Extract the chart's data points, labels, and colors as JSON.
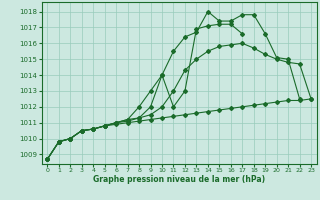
{
  "title": "Graphe pression niveau de la mer (hPa)",
  "bg_color": "#cce8e0",
  "grid_color": "#99ccbb",
  "line_color": "#1a6b2a",
  "xlim": [
    -0.5,
    23.5
  ],
  "ylim": [
    1008.4,
    1018.6
  ],
  "yticks": [
    1009,
    1010,
    1011,
    1012,
    1013,
    1014,
    1015,
    1016,
    1017,
    1018
  ],
  "xticks": [
    0,
    1,
    2,
    3,
    4,
    5,
    6,
    7,
    8,
    9,
    10,
    11,
    12,
    13,
    14,
    15,
    16,
    17,
    18,
    19,
    20,
    21,
    22,
    23
  ],
  "series": [
    {
      "x": [
        0,
        1,
        2,
        3,
        4,
        5,
        6,
        7,
        8,
        9,
        10,
        11,
        12,
        13,
        14,
        15,
        16,
        17,
        18,
        19,
        20,
        21,
        22,
        23
      ],
      "y": [
        1008.7,
        1009.8,
        1010.0,
        1010.5,
        1010.6,
        1010.8,
        1010.9,
        1011.0,
        1011.1,
        1011.2,
        1011.3,
        1011.4,
        1011.5,
        1011.6,
        1011.7,
        1011.8,
        1011.9,
        1012.0,
        1012.1,
        1012.2,
        1012.3,
        1012.4,
        1012.4,
        1012.5
      ]
    },
    {
      "x": [
        0,
        1,
        2,
        3,
        4,
        5,
        6,
        7,
        8,
        9,
        10,
        11,
        12,
        13,
        14,
        15,
        16,
        17,
        18,
        19,
        20,
        21,
        22,
        23
      ],
      "y": [
        1008.7,
        1009.8,
        1010.0,
        1010.5,
        1010.6,
        1010.8,
        1011.0,
        1011.1,
        1011.3,
        1011.5,
        1012.0,
        1013.0,
        1014.3,
        1015.0,
        1015.5,
        1015.8,
        1015.9,
        1016.0,
        1015.7,
        1015.3,
        1015.0,
        1014.8,
        1014.7,
        1012.5
      ]
    },
    {
      "x": [
        0,
        1,
        2,
        3,
        4,
        5,
        6,
        7,
        8,
        9,
        10,
        11,
        12,
        13,
        14,
        15,
        16,
        17,
        18,
        19,
        20,
        21,
        22
      ],
      "y": [
        1008.7,
        1009.8,
        1010.0,
        1010.5,
        1010.6,
        1010.8,
        1011.0,
        1011.2,
        1011.3,
        1012.0,
        1014.0,
        1015.5,
        1016.4,
        1016.7,
        1018.0,
        1017.4,
        1017.4,
        1017.8,
        1017.8,
        1016.6,
        1015.1,
        1015.0,
        1012.5
      ]
    },
    {
      "x": [
        0,
        1,
        2,
        3,
        4,
        5,
        6,
        7,
        8,
        9,
        10,
        11,
        12,
        13,
        14,
        15,
        16,
        17
      ],
      "y": [
        1008.7,
        1009.8,
        1010.0,
        1010.5,
        1010.6,
        1010.8,
        1011.0,
        1011.2,
        1012.0,
        1013.0,
        1014.0,
        1012.0,
        1013.0,
        1016.9,
        1017.1,
        1017.2,
        1017.2,
        1016.6
      ]
    }
  ]
}
